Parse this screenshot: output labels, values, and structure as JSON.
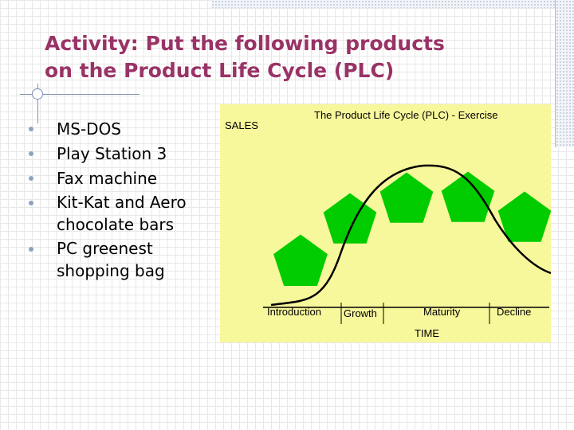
{
  "slide": {
    "title_lines": [
      "Activity: Put the following products",
      "on the Product Life Cycle (PLC)"
    ],
    "bullets": [
      "MS-DOS",
      "Play Station 3",
      "Fax machine",
      "Kit-Kat and Aero chocolate bars",
      "PC greenest shopping bag"
    ]
  },
  "plc_image": {
    "title": "The Product Life Cycle (PLC) - Exercise",
    "y_label": "SALES",
    "x_label": "TIME",
    "stages": [
      "Introduction",
      "Growth",
      "Maturity",
      "Decline"
    ],
    "background_color": "#f7f79c",
    "pentagon_color": "#00cc00",
    "curve_color": "#000000"
  }
}
